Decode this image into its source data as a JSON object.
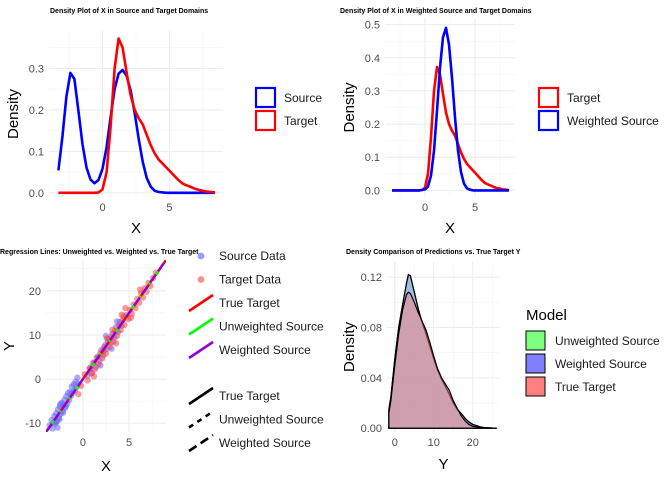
{
  "chart_data": [
    {
      "id": "p1",
      "type": "line",
      "title": "Density Plot of X in Source and Target Domains",
      "xlabel": "X",
      "ylabel": "Density",
      "xlim": [
        -4,
        9
      ],
      "ylim": [
        -0.01,
        0.39
      ],
      "xticks": [
        0,
        5
      ],
      "yticks": [
        0.0,
        0.1,
        0.2,
        0.3
      ],
      "ytick_labels": [
        "0.0",
        "0.1",
        "0.2",
        "0.3"
      ],
      "grid": true,
      "legend": {
        "position": "right",
        "entries": [
          "Source",
          "Target"
        ],
        "colors": [
          "#0000ff",
          "#ff0000"
        ]
      },
      "series": [
        {
          "name": "Source",
          "color": "#0000ff",
          "x": [
            -3.3,
            -3,
            -2.7,
            -2.4,
            -2.1,
            -1.8,
            -1.5,
            -1.2,
            -0.9,
            -0.6,
            -0.3,
            0,
            0.3,
            0.6,
            0.9,
            1.2,
            1.5,
            1.8,
            2.1,
            2.4,
            2.7,
            3,
            3.3,
            3.6,
            3.9,
            4.2,
            4.5,
            4.8,
            5.1,
            5.4,
            5.7,
            6,
            6.3,
            6.6,
            6.9,
            7.2,
            7.5,
            7.8,
            8.1,
            8.4
          ],
          "y": [
            0.054,
            0.135,
            0.232,
            0.289,
            0.274,
            0.198,
            0.117,
            0.061,
            0.032,
            0.023,
            0.031,
            0.058,
            0.11,
            0.182,
            0.25,
            0.287,
            0.296,
            0.282,
            0.247,
            0.192,
            0.13,
            0.075,
            0.036,
            0.015,
            0.005,
            0.002,
            0.001,
            0,
            0,
            0,
            0,
            0,
            0,
            0,
            0,
            0,
            0,
            0,
            0,
            0
          ]
        },
        {
          "name": "Target",
          "color": "#ff0000",
          "x": [
            -3.3,
            -3,
            -2.7,
            -2.4,
            -2.1,
            -1.8,
            -1.5,
            -1.2,
            -0.9,
            -0.6,
            -0.3,
            0,
            0.3,
            0.6,
            0.9,
            1.2,
            1.5,
            1.8,
            2.1,
            2.4,
            2.7,
            3,
            3.3,
            3.6,
            3.9,
            4.2,
            4.5,
            4.8,
            5.1,
            5.4,
            5.7,
            6,
            6.3,
            6.6,
            6.9,
            7.2,
            7.5,
            7.8,
            8.1,
            8.4
          ],
          "y": [
            0,
            0,
            0,
            0,
            0,
            0,
            0,
            0,
            0,
            0,
            0.001,
            0.008,
            0.05,
            0.16,
            0.3,
            0.372,
            0.35,
            0.29,
            0.235,
            0.2,
            0.18,
            0.165,
            0.14,
            0.115,
            0.095,
            0.08,
            0.07,
            0.06,
            0.05,
            0.04,
            0.03,
            0.022,
            0.018,
            0.014,
            0.01,
            0.007,
            0.005,
            0.003,
            0.002,
            0.001
          ]
        }
      ]
    },
    {
      "id": "p2",
      "type": "line",
      "title": "Density Plot of X in Weighted Source and Target Domains",
      "xlabel": "X",
      "ylabel": "Density",
      "xlim": [
        -4,
        9
      ],
      "ylim": [
        -0.02,
        0.52
      ],
      "xticks": [
        0,
        5
      ],
      "yticks": [
        0.0,
        0.1,
        0.2,
        0.3,
        0.4,
        0.5
      ],
      "ytick_labels": [
        "0.0",
        "0.1",
        "0.2",
        "0.3",
        "0.4",
        "0.5"
      ],
      "grid": true,
      "legend": {
        "position": "right",
        "entries": [
          "Target",
          "Weighted Source"
        ],
        "colors": [
          "#ff0000",
          "#0000ff"
        ]
      },
      "series": [
        {
          "name": "Target",
          "color": "#ff0000",
          "x": [
            -3.3,
            -3,
            -2.7,
            -2.4,
            -2.1,
            -1.8,
            -1.5,
            -1.2,
            -0.9,
            -0.6,
            -0.3,
            0,
            0.3,
            0.6,
            0.9,
            1.2,
            1.5,
            1.8,
            2.1,
            2.4,
            2.7,
            3,
            3.3,
            3.6,
            3.9,
            4.2,
            4.5,
            4.8,
            5.1,
            5.4,
            5.7,
            6,
            6.3,
            6.6,
            6.9,
            7.2,
            7.5,
            7.8,
            8.1,
            8.4
          ],
          "y": [
            0,
            0,
            0,
            0,
            0,
            0,
            0,
            0,
            0,
            0,
            0.001,
            0.008,
            0.05,
            0.16,
            0.3,
            0.372,
            0.35,
            0.29,
            0.235,
            0.2,
            0.18,
            0.165,
            0.14,
            0.115,
            0.095,
            0.08,
            0.07,
            0.06,
            0.05,
            0.04,
            0.03,
            0.022,
            0.018,
            0.014,
            0.01,
            0.007,
            0.005,
            0.003,
            0.002,
            0.001
          ]
        },
        {
          "name": "Weighted Source",
          "color": "#0000ff",
          "x": [
            -3.3,
            -3,
            -2.7,
            -2.4,
            -2.1,
            -1.8,
            -1.5,
            -1.2,
            -0.9,
            -0.6,
            -0.3,
            0,
            0.3,
            0.6,
            0.9,
            1.2,
            1.5,
            1.8,
            2.1,
            2.4,
            2.7,
            3,
            3.3,
            3.6,
            3.9,
            4.2,
            4.5,
            4.8,
            5.1,
            5.4,
            5.7,
            6,
            6.3,
            6.6,
            6.9,
            7.2,
            7.5,
            7.8,
            8.1,
            8.4
          ],
          "y": [
            0,
            0,
            0,
            0,
            0,
            0,
            0,
            0,
            0,
            0,
            0.001,
            0.003,
            0.012,
            0.045,
            0.12,
            0.24,
            0.37,
            0.462,
            0.49,
            0.44,
            0.34,
            0.22,
            0.12,
            0.055,
            0.02,
            0.006,
            0.002,
            0,
            0,
            0,
            0,
            0,
            0,
            0,
            0,
            0,
            0,
            0,
            0,
            0
          ]
        }
      ]
    },
    {
      "id": "p3",
      "type": "scatter",
      "title": "Regression Lines: Unweighted vs. Weighted vs. True Target",
      "xlabel": "X",
      "ylabel": "Y",
      "xlim": [
        -4,
        9
      ],
      "ylim": [
        -12,
        27
      ],
      "xticks": [
        0,
        5
      ],
      "yticks": [
        -10,
        0,
        10,
        20
      ],
      "grid": true,
      "legend": {
        "position": "right",
        "colour_entries": [
          {
            "label": "Source Data",
            "kind": "point",
            "color": "#6666ff"
          },
          {
            "label": "Target Data",
            "kind": "point",
            "color": "#ff5555"
          },
          {
            "label": "True Target",
            "kind": "line",
            "color": "#ff0000"
          },
          {
            "label": "Unweighted Source",
            "kind": "line",
            "color": "#00ff00"
          },
          {
            "label": "Weighted Source",
            "kind": "line",
            "color": "#9400d3"
          }
        ],
        "linetype_entries": [
          {
            "label": "True Target",
            "dash": "solid"
          },
          {
            "label": "Unweighted Source",
            "dash": "dashed"
          },
          {
            "label": "Weighted Source",
            "dash": "longdash"
          }
        ]
      },
      "source_points": [
        [
          -3.6,
          -10.5
        ],
        [
          -3.4,
          -9.3
        ],
        [
          -3.3,
          -11.2
        ],
        [
          -3.1,
          -8.4
        ],
        [
          -3,
          -10.1
        ],
        [
          -2.9,
          -7.8
        ],
        [
          -2.8,
          -9.5
        ],
        [
          -2.7,
          -6.9
        ],
        [
          -2.6,
          -8.8
        ],
        [
          -2.5,
          -6.2
        ],
        [
          -2.4,
          -7.9
        ],
        [
          -2.3,
          -5.4
        ],
        [
          -2.2,
          -7.2
        ],
        [
          -2.1,
          -5.9
        ],
        [
          -2,
          -4.7
        ],
        [
          -1.9,
          -6.5
        ],
        [
          -1.8,
          -3.9
        ],
        [
          -1.7,
          -5.6
        ],
        [
          -1.6,
          -3.2
        ],
        [
          -1.5,
          -4.8
        ],
        [
          -1.4,
          -2.9
        ],
        [
          -1.3,
          -3.8
        ],
        [
          -1.2,
          -1.7
        ],
        [
          -1.1,
          -3.1
        ],
        [
          -1,
          -1.2
        ],
        [
          -0.9,
          -2.6
        ],
        [
          -0.8,
          -0.6
        ],
        [
          -0.7,
          -1.9
        ],
        [
          -0.6,
          0.3
        ],
        [
          -0.5,
          -1.1
        ],
        [
          -2.9,
          -9.8
        ],
        [
          -2.55,
          -9.1
        ],
        [
          -2.15,
          -7.6
        ],
        [
          -1.85,
          -6.1
        ],
        [
          -2.75,
          -11
        ],
        [
          -3.2,
          -9.9
        ],
        [
          -2.45,
          -5.7
        ],
        [
          0.5,
          0.8
        ],
        [
          0.8,
          2.6
        ],
        [
          1,
          1.4
        ],
        [
          1.2,
          3.8
        ],
        [
          1.4,
          2.7
        ],
        [
          1.6,
          5.1
        ],
        [
          1.8,
          4.2
        ],
        [
          2,
          6.6
        ],
        [
          2.2,
          5.4
        ],
        [
          2.4,
          7.7
        ],
        [
          2.6,
          6.8
        ],
        [
          2.8,
          9.1
        ],
        [
          3,
          8.2
        ],
        [
          3.2,
          10.3
        ],
        [
          3.4,
          9.4
        ],
        [
          3.6,
          11.8
        ],
        [
          3.8,
          10.7
        ],
        [
          4,
          12.9
        ],
        [
          4.2,
          12.1
        ],
        [
          4.4,
          14.2
        ],
        [
          1.9,
          3.1
        ],
        [
          2.5,
          9.8
        ],
        [
          3.1,
          6.9
        ],
        [
          3.7,
          13.1
        ]
      ],
      "target_points": [
        [
          0.2,
          1.1
        ],
        [
          0.5,
          -0.3
        ],
        [
          0.7,
          2.4
        ],
        [
          0.9,
          1.3
        ],
        [
          1.1,
          3.6
        ],
        [
          1.3,
          2.2
        ],
        [
          1.5,
          4.8
        ],
        [
          1.7,
          3.4
        ],
        [
          1.9,
          5.9
        ],
        [
          2.1,
          4.7
        ],
        [
          2.3,
          7.2
        ],
        [
          2.5,
          5.8
        ],
        [
          2.7,
          8.4
        ],
        [
          2.9,
          7.3
        ],
        [
          3.1,
          9.6
        ],
        [
          3.3,
          8.5
        ],
        [
          3.5,
          10.9
        ],
        [
          3.7,
          9.8
        ],
        [
          3.9,
          12.2
        ],
        [
          4.1,
          11.1
        ],
        [
          4.3,
          13.4
        ],
        [
          4.5,
          12.3
        ],
        [
          4.7,
          14.5
        ],
        [
          4.9,
          13.6
        ],
        [
          5.1,
          15.7
        ],
        [
          5.3,
          14.8
        ],
        [
          5.5,
          16.9
        ],
        [
          5.7,
          16.1
        ],
        [
          5.9,
          18.2
        ],
        [
          6.1,
          17.3
        ],
        [
          6.3,
          19.4
        ],
        [
          6.5,
          18.5
        ],
        [
          6.7,
          20.6
        ],
        [
          6.9,
          19.8
        ],
        [
          7.1,
          21.8
        ],
        [
          7.3,
          21.1
        ],
        [
          7.6,
          22.9
        ],
        [
          7.9,
          24.1
        ],
        [
          1.2,
          0.6
        ],
        [
          2.2,
          6.3
        ],
        [
          3.2,
          11.2
        ],
        [
          4.2,
          14.6
        ],
        [
          5.2,
          13.9
        ],
        [
          6.2,
          20.3
        ],
        [
          2.6,
          9.2
        ],
        [
          3.6,
          8.1
        ],
        [
          4.6,
          16.1
        ],
        [
          -0.5,
          -3.4
        ],
        [
          -0.2,
          -1.5
        ]
      ],
      "lines": [
        {
          "name": "True Target",
          "color": "#ff0000",
          "dash": "solid",
          "intercept": 0.0,
          "slope": 3.0
        },
        {
          "name": "Unweighted Source",
          "color": "#00ff00",
          "dash": "dashed",
          "intercept": 0.0,
          "slope": 3.0
        },
        {
          "name": "Weighted Source",
          "color": "#9400d3",
          "dash": "longdash",
          "intercept": 0.0,
          "slope": 3.0
        }
      ]
    },
    {
      "id": "p4",
      "type": "area",
      "title": "Density Comparison of Predictions vs. True Target Y",
      "xlabel": "Y",
      "ylabel": "Density",
      "xlim": [
        -2,
        27
      ],
      "ylim": [
        -0.003,
        0.132
      ],
      "xticks": [
        0,
        10,
        20
      ],
      "yticks": [
        0.0,
        0.04,
        0.08,
        0.12
      ],
      "ytick_labels": [
        "0.00",
        "0.04",
        "0.08",
        "0.12"
      ],
      "grid": true,
      "legend": {
        "position": "right",
        "title": "Model",
        "entries": [
          "Unweighted Source",
          "Weighted Source",
          "True Target"
        ],
        "colors": [
          "#7fff7f",
          "#7f7fff",
          "#ff7f7f"
        ]
      },
      "series": [
        {
          "name": "Unweighted Source",
          "color": "#7fff7f",
          "x": [
            -1.5,
            -1,
            0,
            1,
            2,
            3,
            3.5,
            4,
            5,
            6,
            7,
            8,
            9,
            10,
            11,
            12,
            13,
            14,
            15,
            16,
            17,
            18,
            19,
            20,
            21,
            22,
            23,
            24,
            25,
            26
          ],
          "y": [
            0.015,
            0.025,
            0.055,
            0.08,
            0.098,
            0.115,
            0.122,
            0.121,
            0.108,
            0.095,
            0.084,
            0.075,
            0.065,
            0.055,
            0.046,
            0.039,
            0.033,
            0.027,
            0.02,
            0.015,
            0.012,
            0.008,
            0.005,
            0.003,
            0.002,
            0.001,
            0.0005,
            0.0003,
            0.0002,
            0.0001
          ]
        },
        {
          "name": "Weighted Source",
          "color": "#7f7fff",
          "x": [
            -1.5,
            -1,
            0,
            1,
            2,
            3,
            3.5,
            4,
            5,
            6,
            7,
            8,
            9,
            10,
            11,
            12,
            13,
            14,
            15,
            16,
            17,
            18,
            19,
            20,
            21,
            22,
            23,
            24,
            25,
            26
          ],
          "y": [
            0.015,
            0.025,
            0.055,
            0.08,
            0.098,
            0.115,
            0.122,
            0.121,
            0.108,
            0.095,
            0.084,
            0.075,
            0.065,
            0.055,
            0.046,
            0.039,
            0.033,
            0.027,
            0.02,
            0.015,
            0.012,
            0.008,
            0.005,
            0.003,
            0.002,
            0.001,
            0.0005,
            0.0003,
            0.0002,
            0.0001
          ]
        },
        {
          "name": "True Target",
          "color": "#ff7f7f",
          "x": [
            -1.5,
            -1,
            0,
            1,
            2,
            3,
            3.5,
            4,
            5,
            6,
            7,
            8,
            9,
            10,
            11,
            12,
            13,
            14,
            15,
            16,
            17,
            18,
            19,
            20,
            21,
            22,
            23,
            24,
            25,
            26
          ],
          "y": [
            0.012,
            0.022,
            0.05,
            0.075,
            0.094,
            0.106,
            0.108,
            0.107,
            0.1,
            0.092,
            0.085,
            0.078,
            0.068,
            0.057,
            0.047,
            0.04,
            0.035,
            0.03,
            0.022,
            0.016,
            0.01,
            0.006,
            0.003,
            0.0015,
            0.001,
            0.0005,
            0.0003,
            0.0002,
            0.0001,
            0.0001
          ]
        }
      ]
    }
  ]
}
